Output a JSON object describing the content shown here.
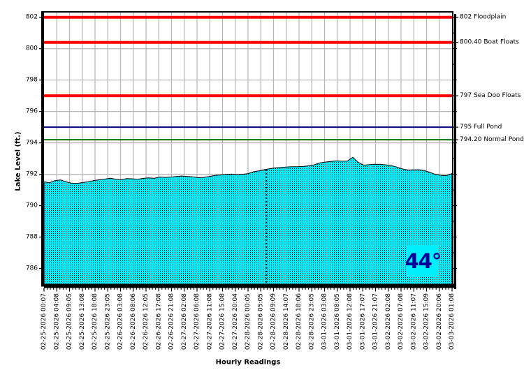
{
  "chart_data": {
    "type": "area",
    "title": "",
    "xlabel": "Hourly Readings",
    "ylabel": "Lake Level (ft.)",
    "ylim": [
      785.0,
      802.3
    ],
    "yticks": [
      786,
      788,
      790,
      792,
      794,
      796,
      798,
      800,
      802
    ],
    "grid": true,
    "x_tick_labels": [
      "02-25-2026 00:07",
      "02-25-2026 04:08",
      "02-25-2026 09:05",
      "02-25-2026 13:08",
      "02-25-2026 18:08",
      "02-25-2026 23:05",
      "02-26-2026 03:08",
      "02-26-2026 08:06",
      "02-26-2026 12:05",
      "02-26-2026 17:08",
      "02-26-2026 21:08",
      "02-27-2026 02:08",
      "02-27-2026 06:08",
      "02-27-2026 11:08",
      "02-27-2026 15:08",
      "02-27-2026 20:04",
      "02-28-2026 00:05",
      "02-28-2026 05:05",
      "02-28-2026 09:09",
      "02-28-2026 14:07",
      "02-28-2026 18:06",
      "02-28-2026 23:05",
      "03-01-2026 03:08",
      "03-01-2026 08:05",
      "03-01-2026 12:08",
      "03-01-2026 17:07",
      "03-01-2026 21:07",
      "03-02-2026 02:08",
      "03-02-2026 07:08",
      "03-02-2026 11:07",
      "03-02-2026 15:09",
      "03-02-2026 20:06",
      "03-03-2026 01:08"
    ],
    "reference_lines": [
      {
        "value": 802,
        "label": "802 Floodplain",
        "color": "#FF0000",
        "width": 4
      },
      {
        "value": 800.4,
        "label": "800.40 Boat Floats",
        "color": "#FF0000",
        "width": 4
      },
      {
        "value": 797,
        "label": "797 Sea Doo Floats",
        "color": "#FF0000",
        "width": 4
      },
      {
        "value": 795,
        "label": "795 Full Pond",
        "color": "#000080",
        "width": 2
      },
      {
        "value": 794.2,
        "label": "794.20 Normal Pond",
        "color": "#007000",
        "width": 2
      }
    ],
    "series": [
      {
        "name": "Lake Level",
        "color": "#00EEFF",
        "pattern": "black-dots",
        "values": [
          791.52,
          791.46,
          791.6,
          791.64,
          791.52,
          791.43,
          791.42,
          791.47,
          791.52,
          791.6,
          791.65,
          791.69,
          791.75,
          791.69,
          791.65,
          791.73,
          791.71,
          791.68,
          791.74,
          791.77,
          791.74,
          791.82,
          791.8,
          791.82,
          791.86,
          791.89,
          791.86,
          791.84,
          791.78,
          791.8,
          791.86,
          791.93,
          791.95,
          791.99,
          792.01,
          791.97,
          792.0,
          792.04,
          792.16,
          792.22,
          792.3,
          792.36,
          792.41,
          792.44,
          792.46,
          792.48,
          792.48,
          792.5,
          792.54,
          792.6,
          792.72,
          792.78,
          792.82,
          792.85,
          792.83,
          792.84,
          793.08,
          792.76,
          792.58,
          792.62,
          792.64,
          792.63,
          792.6,
          792.55,
          792.46,
          792.34,
          792.27,
          792.28,
          792.29,
          792.23,
          792.12,
          791.99,
          791.93,
          791.91,
          792.05
        ]
      }
    ],
    "marker": {
      "x_frac": 0.545
    },
    "temperature": "44°",
    "colors": {
      "grid": "#b4b4b4",
      "frame": "#000000",
      "area_fill": "#00EEFF",
      "temp_text": "#000099"
    }
  }
}
